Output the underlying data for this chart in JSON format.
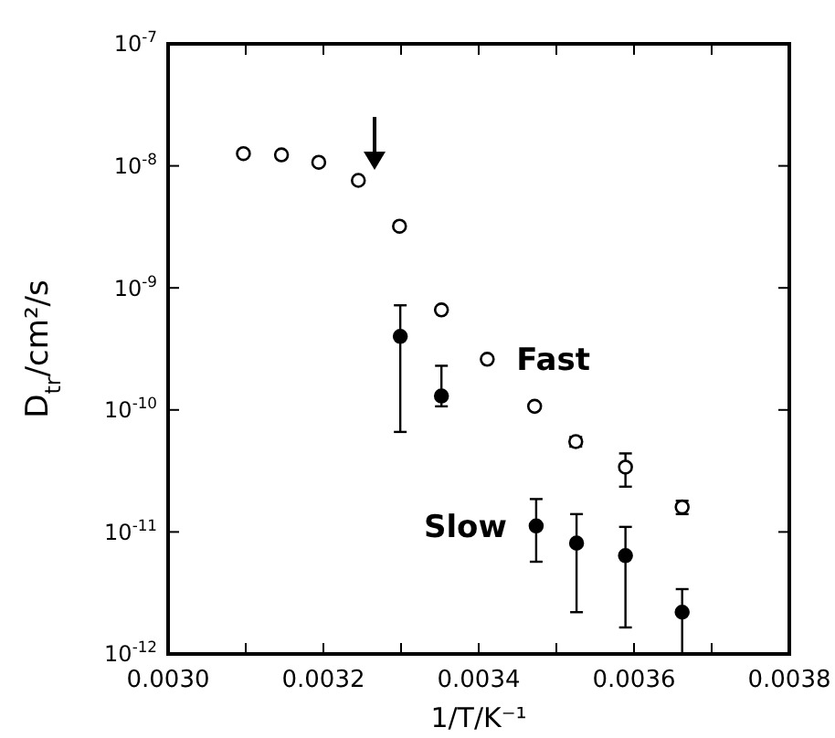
{
  "chart_data": {
    "type": "scatter",
    "xlabel": "1/T/K⁻¹",
    "ylabel": "D$_{tr}$/cm²/s",
    "log": "y",
    "marker": "circle",
    "grid": false,
    "xlim": [
      0.003,
      0.0038
    ],
    "xticks": [
      {
        "value": 0.003,
        "label": "0.0030"
      },
      {
        "value": 0.0031,
        "label": null
      },
      {
        "value": 0.0032,
        "label": "0.0032"
      },
      {
        "value": 0.0033,
        "label": null
      },
      {
        "value": 0.0034,
        "label": "0.0034"
      },
      {
        "value": 0.0035,
        "label": null
      },
      {
        "value": 0.0036,
        "label": "0.0036"
      },
      {
        "value": 0.0037,
        "label": null
      },
      {
        "value": 0.0038,
        "label": "0.0038"
      }
    ],
    "ylim": [
      1e-12,
      1e-07
    ],
    "yticks": [
      {
        "value": 1e-12,
        "label": "10$^{-12}$"
      },
      {
        "value": 1e-11,
        "label": "10$^{-11}$"
      },
      {
        "value": 1e-10,
        "label": "10$^{-10}$"
      },
      {
        "value": 1e-09,
        "label": "10$^{-9}$"
      },
      {
        "value": 1e-08,
        "label": "10$^{-8}$"
      },
      {
        "value": 1e-07,
        "label": "10$^{-7}$"
      }
    ],
    "series": [
      {
        "name": "Fast",
        "color": "#ffffff",
        "x": [
          0.003097,
          0.003146,
          0.003194,
          0.003245,
          0.003298,
          0.003352,
          0.003411,
          0.003472,
          0.003525,
          0.003589,
          0.003662
        ],
        "values": [
          1.26e-08,
          1.23e-08,
          1.07e-08,
          7.6e-09,
          3.2e-09,
          6.6e-10,
          2.6e-10,
          1.07e-10,
          5.5e-11,
          3.4e-11,
          1.6e-11
        ],
        "errors": [
          null,
          null,
          null,
          null,
          null,
          null,
          null,
          null,
          [
            5e-11,
            6e-11
          ],
          [
            2.35e-11,
            4.4e-11
          ],
          [
            1.4e-11,
            1.8e-11
          ]
        ]
      },
      {
        "name": "Slow",
        "color": "#000000",
        "x": [
          0.003299,
          0.003352,
          0.003474,
          0.003526,
          0.003589,
          0.003662
        ],
        "values": [
          4e-10,
          1.3e-10,
          1.12e-11,
          8.1e-12,
          6.4e-12,
          2.2e-12
        ],
        "errors": [
          [
            6.6e-11,
            7.2e-10
          ],
          [
            1.07e-10,
            2.3e-10
          ],
          [
            5.7e-12,
            1.86e-11
          ],
          [
            2.2e-12,
            1.4e-11
          ],
          [
            1.65e-12,
            1.1e-11
          ],
          [
            1e-12,
            3.4e-12
          ]
        ]
      }
    ]
  }
}
